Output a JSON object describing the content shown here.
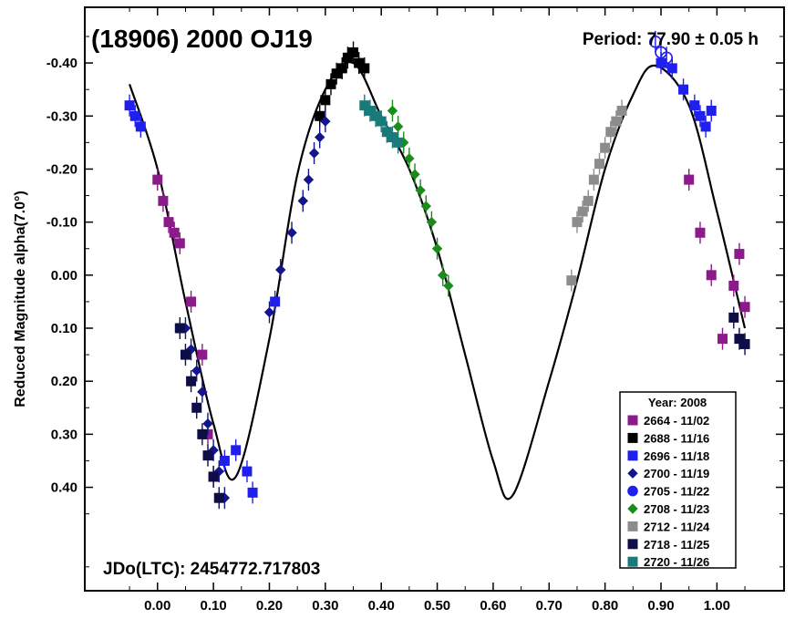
{
  "chart_data": {
    "type": "scatter",
    "title": "(18906) 2000 OJ19",
    "period_label": "Period: 77.90 ± 0.05 h",
    "epoch_label": "JDo(LTC): 2454772.717803",
    "xlabel": "",
    "ylabel": "Reduced Magnitude alpha(7.0°)",
    "xlim": [
      -0.13,
      1.12
    ],
    "ylim": [
      -0.505,
      0.595
    ],
    "y_inverted": true,
    "grid": false,
    "legend_position": "bottom-right",
    "x_ticks": [
      {
        "v": 0.0,
        "label": "0.00"
      },
      {
        "v": 0.1,
        "label": "0.10"
      },
      {
        "v": 0.2,
        "label": "0.20"
      },
      {
        "v": 0.3,
        "label": "0.30"
      },
      {
        "v": 0.4,
        "label": "0.40"
      },
      {
        "v": 0.5,
        "label": "0.50"
      },
      {
        "v": 0.6,
        "label": "0.60"
      },
      {
        "v": 0.7,
        "label": "0.70"
      },
      {
        "v": 0.8,
        "label": "0.80"
      },
      {
        "v": 0.9,
        "label": "0.90"
      },
      {
        "v": 1.0,
        "label": "1.00"
      }
    ],
    "y_ticks": [
      {
        "v": -0.4,
        "label": "-0.40"
      },
      {
        "v": -0.3,
        "label": "-0.30"
      },
      {
        "v": -0.2,
        "label": "-0.20"
      },
      {
        "v": -0.1,
        "label": "-0.10"
      },
      {
        "v": 0.0,
        "label": "0.00"
      },
      {
        "v": 0.1,
        "label": "0.10"
      },
      {
        "v": 0.2,
        "label": "0.20"
      },
      {
        "v": 0.3,
        "label": "0.30"
      },
      {
        "v": 0.4,
        "label": "0.40"
      }
    ],
    "legend_title": "Year: 2008",
    "fit_curve": {
      "x": [
        -0.05,
        0.0,
        0.05,
        0.1,
        0.14,
        0.2,
        0.25,
        0.3,
        0.35,
        0.4,
        0.45,
        0.5,
        0.55,
        0.6,
        0.635,
        0.7,
        0.75,
        0.8,
        0.85,
        0.89,
        0.95,
        1.0,
        1.05
      ],
      "y": [
        -0.36,
        -0.2,
        0.05,
        0.28,
        0.38,
        0.12,
        -0.19,
        -0.35,
        -0.4,
        -0.3,
        -0.2,
        -0.05,
        0.15,
        0.35,
        0.415,
        0.2,
        0.01,
        -0.2,
        -0.34,
        -0.395,
        -0.32,
        -0.12,
        0.1
      ]
    },
    "series": [
      {
        "name": "2664 - 11/02",
        "color": "#8b1a8b",
        "marker": "square",
        "x": [
          0.0,
          0.01,
          0.02,
          0.03,
          0.04,
          0.06,
          0.08,
          0.09,
          0.1,
          0.95,
          0.97,
          0.99,
          1.01,
          1.03,
          1.04,
          1.05
        ],
        "y": [
          -0.18,
          -0.14,
          -0.1,
          -0.08,
          -0.06,
          0.05,
          0.15,
          0.3,
          0.38,
          -0.18,
          -0.08,
          0.0,
          0.12,
          0.02,
          -0.04,
          0.06
        ]
      },
      {
        "name": "2688 - 11/16",
        "color": "#000000",
        "marker": "square",
        "x": [
          0.29,
          0.3,
          0.31,
          0.32,
          0.33,
          0.34,
          0.35,
          0.36,
          0.37
        ],
        "y": [
          -0.3,
          -0.33,
          -0.36,
          -0.38,
          -0.39,
          -0.41,
          -0.42,
          -0.4,
          -0.39
        ]
      },
      {
        "name": "2696 - 11/18",
        "color": "#1f1fee",
        "marker": "square",
        "x": [
          -0.05,
          -0.04,
          -0.03,
          0.12,
          0.14,
          0.16,
          0.17,
          0.21,
          0.9,
          0.92,
          0.94,
          0.96,
          0.97,
          0.98,
          0.99
        ],
        "y": [
          -0.32,
          -0.3,
          -0.28,
          0.35,
          0.33,
          0.37,
          0.41,
          0.05,
          -0.4,
          -0.39,
          -0.35,
          -0.32,
          -0.3,
          -0.28,
          -0.31
        ]
      },
      {
        "name": "2700 - 11/19",
        "color": "#14148c",
        "marker": "diamond",
        "x": [
          0.05,
          0.06,
          0.07,
          0.08,
          0.09,
          0.1,
          0.11,
          0.12,
          0.2,
          0.22,
          0.24,
          0.26,
          0.27,
          0.28,
          0.29,
          0.3
        ],
        "y": [
          0.1,
          0.14,
          0.18,
          0.22,
          0.28,
          0.33,
          0.37,
          0.42,
          0.07,
          -0.01,
          -0.08,
          -0.14,
          -0.18,
          -0.23,
          -0.26,
          -0.29
        ]
      },
      {
        "name": "2705 - 11/22",
        "color": "#1f1fee",
        "marker": "circle",
        "x": [
          0.89,
          0.9,
          0.91
        ],
        "y": [
          -0.44,
          -0.42,
          -0.41
        ]
      },
      {
        "name": "2708 - 11/23",
        "color": "#1a8c1a",
        "marker": "diamond",
        "x": [
          0.42,
          0.43,
          0.44,
          0.45,
          0.46,
          0.47,
          0.48,
          0.49,
          0.5,
          0.51,
          0.52
        ],
        "y": [
          -0.31,
          -0.28,
          -0.25,
          -0.22,
          -0.19,
          -0.16,
          -0.13,
          -0.1,
          -0.05,
          0.0,
          0.02
        ]
      },
      {
        "name": "2712 - 11/24",
        "color": "#8c8c8c",
        "marker": "square",
        "x": [
          0.74,
          0.75,
          0.76,
          0.77,
          0.78,
          0.79,
          0.8,
          0.81,
          0.82,
          0.83
        ],
        "y": [
          0.01,
          -0.1,
          -0.12,
          -0.14,
          -0.18,
          -0.21,
          -0.24,
          -0.27,
          -0.29,
          -0.31
        ]
      },
      {
        "name": "2718 - 11/25",
        "color": "#0d0d48",
        "marker": "square",
        "x": [
          0.04,
          0.05,
          0.06,
          0.07,
          0.08,
          0.09,
          0.1,
          0.11,
          1.03,
          1.04,
          1.05
        ],
        "y": [
          0.1,
          0.15,
          0.2,
          0.25,
          0.3,
          0.34,
          0.38,
          0.42,
          0.08,
          0.12,
          0.13
        ]
      },
      {
        "name": "2720 - 11/26",
        "color": "#1a7a7a",
        "marker": "square",
        "x": [
          0.37,
          0.38,
          0.39,
          0.4,
          0.41,
          0.42,
          0.43
        ],
        "y": [
          -0.32,
          -0.31,
          -0.3,
          -0.29,
          -0.27,
          -0.26,
          -0.25
        ]
      }
    ]
  }
}
